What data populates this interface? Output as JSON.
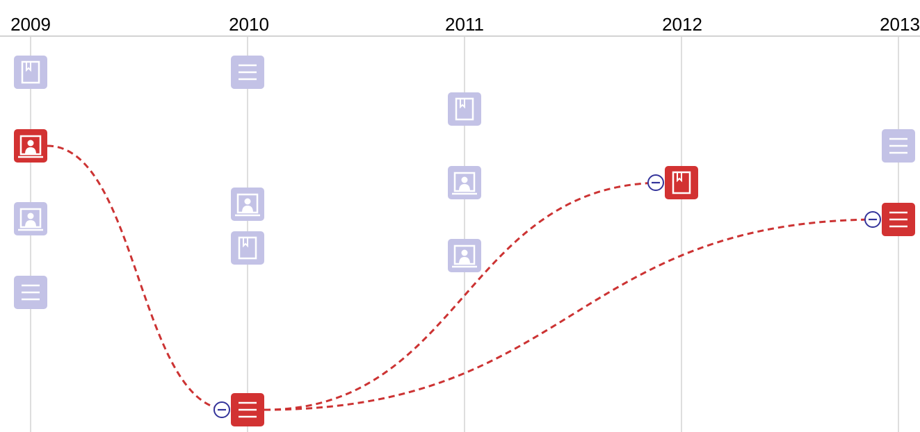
{
  "timeline": {
    "years": [
      "2009",
      "2010",
      "2011",
      "2012",
      "2013"
    ]
  },
  "colors": {
    "axis": "#d3d3d3",
    "inactive_node": "#c3c2e6",
    "active_node": "#d23232",
    "link": "#cc3333",
    "collapse_ring": "#33339a"
  },
  "icon_types": [
    "bookmark-icon",
    "list-icon",
    "portrait-icon"
  ],
  "nodes": [
    {
      "year": "2009",
      "icon": "bookmark-icon",
      "active": false,
      "slot": 0
    },
    {
      "year": "2009",
      "icon": "portrait-icon",
      "active": true,
      "slot": 1
    },
    {
      "year": "2009",
      "icon": "portrait-icon",
      "active": false,
      "slot": 2
    },
    {
      "year": "2009",
      "icon": "list-icon",
      "active": false,
      "slot": 3
    },
    {
      "year": "2010",
      "icon": "list-icon",
      "active": false,
      "slot": 0
    },
    {
      "year": "2010",
      "icon": "portrait-icon",
      "active": false,
      "slot": 1
    },
    {
      "year": "2010",
      "icon": "bookmark-icon",
      "active": false,
      "slot": 2
    },
    {
      "year": "2010",
      "icon": "list-icon",
      "active": true,
      "slot": 3,
      "collapse": true
    },
    {
      "year": "2011",
      "icon": "bookmark-icon",
      "active": false,
      "slot": 0
    },
    {
      "year": "2011",
      "icon": "portrait-icon",
      "active": false,
      "slot": 1
    },
    {
      "year": "2011",
      "icon": "portrait-icon",
      "active": false,
      "slot": 2
    },
    {
      "year": "2012",
      "icon": "bookmark-icon",
      "active": true,
      "slot": 0,
      "collapse": true
    },
    {
      "year": "2013",
      "icon": "list-icon",
      "active": false,
      "slot": 0
    },
    {
      "year": "2013",
      "icon": "list-icon",
      "active": true,
      "slot": 1,
      "collapse": true
    }
  ],
  "links": [
    {
      "from": 1,
      "to": 7
    },
    {
      "from": 7,
      "to": 11
    },
    {
      "from": 7,
      "to": 13
    }
  ]
}
